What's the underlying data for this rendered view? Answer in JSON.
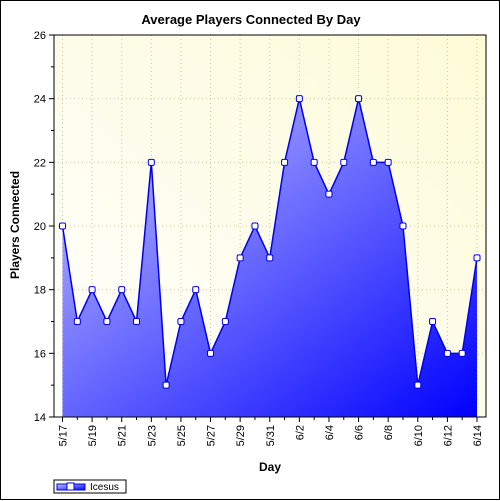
{
  "chart_data": {
    "type": "area",
    "title": "Average Players Connected By Day",
    "xlabel": "Day",
    "ylabel": "Players Connected",
    "ylim": [
      14,
      26
    ],
    "yticks": [
      14,
      16,
      18,
      20,
      22,
      24,
      26
    ],
    "categories": [
      "5/17",
      "5/18",
      "5/19",
      "5/20",
      "5/21",
      "5/22",
      "5/23",
      "5/24",
      "5/25",
      "5/26",
      "5/27",
      "5/28",
      "5/29",
      "5/30",
      "5/31",
      "6/1",
      "6/2",
      "6/3",
      "6/4",
      "6/5",
      "6/6",
      "6/7",
      "6/8",
      "6/9",
      "6/10",
      "6/11",
      "6/12",
      "6/13",
      "6/14"
    ],
    "xtick_labels": [
      "5/17",
      "",
      "5/19",
      "",
      "5/21",
      "",
      "5/23",
      "",
      "5/25",
      "",
      "5/27",
      "",
      "5/29",
      "",
      "5/31",
      "",
      "6/2",
      "",
      "6/4",
      "",
      "6/6",
      "",
      "6/8",
      "",
      "6/10",
      "",
      "6/12",
      "",
      "6/14"
    ],
    "series": [
      {
        "name": "Icesus",
        "values": [
          20,
          17,
          18,
          17,
          18,
          17,
          22,
          15,
          17,
          18,
          16,
          17,
          19,
          20,
          19,
          22,
          24,
          22,
          21,
          22,
          24,
          22,
          22,
          20,
          15,
          17,
          16,
          16,
          19
        ]
      }
    ],
    "grid": true,
    "legend_position": "bottom-left",
    "colors": {
      "plot_bg_top": "#fefbd6",
      "plot_bg_bottom": "#ffffff",
      "area_light": "#c8c8ff",
      "area_dark": "#0000ff",
      "line": "#0000ee",
      "marker_fill": "#ffffff",
      "grid": "#c9c9a0"
    }
  }
}
